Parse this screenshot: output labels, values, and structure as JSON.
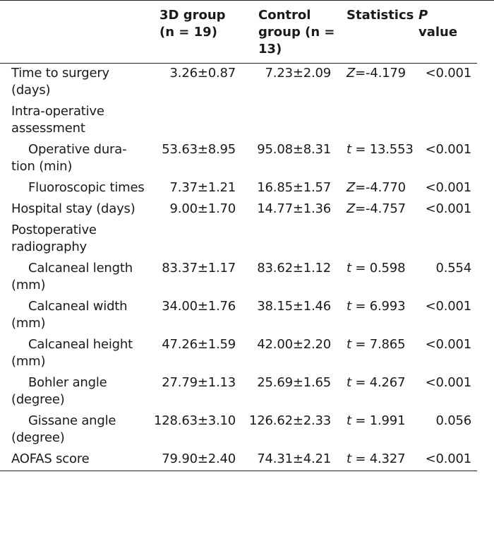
{
  "header": {
    "col0": "",
    "col1": "3D group (n = 19)",
    "col2": "Control group (n = 13)",
    "col3": "Statistics",
    "col4_italic": "P",
    "col4_rest": "value"
  },
  "rows": [
    {
      "label": "Time to surgery (days)",
      "indent": false,
      "g3d": "3.26±0.87",
      "ctrl": "7.23±2.09",
      "stat_sym": "Z",
      "stat_val": "=-4.179",
      "p": "<0.001"
    },
    {
      "label": "Intra-operative assessment",
      "indent": false,
      "g3d": "",
      "ctrl": "",
      "stat_sym": "",
      "stat_val": "",
      "p": ""
    },
    {
      "label": "Operative dura-tion (min)",
      "indent": true,
      "g3d": "53.63±8.95",
      "ctrl": "95.08±8.31",
      "stat_sym": "t",
      "stat_val": " = 13.553",
      "p": "<0.001"
    },
    {
      "label": "Fluoroscopic times",
      "indent": true,
      "g3d": "7.37±1.21",
      "ctrl": "16.85±1.57",
      "stat_sym": "Z",
      "stat_val": "=-4.770",
      "p": "<0.001"
    },
    {
      "label": "Hospital stay (days)",
      "indent": false,
      "g3d": "9.00±1.70",
      "ctrl": "14.77±1.36",
      "stat_sym": "Z",
      "stat_val": "=-4.757",
      "p": "<0.001"
    },
    {
      "label": "Postoperative radiography",
      "indent": false,
      "g3d": "",
      "ctrl": "",
      "stat_sym": "",
      "stat_val": "",
      "p": ""
    },
    {
      "label": "Calcaneal length (mm)",
      "indent": true,
      "g3d": "83.37±1.17",
      "ctrl": "83.62±1.12",
      "stat_sym": "t",
      "stat_val": " = 0.598",
      "p": "0.554"
    },
    {
      "label": "Calcaneal width (mm)",
      "indent": true,
      "g3d": "34.00±1.76",
      "ctrl": "38.15±1.46",
      "stat_sym": "t",
      "stat_val": " = 6.993",
      "p": "<0.001"
    },
    {
      "label": "Calcaneal height (mm)",
      "indent": true,
      "g3d": "47.26±1.59",
      "ctrl": "42.00±2.20",
      "stat_sym": "t",
      "stat_val": " = 7.865",
      "p": "<0.001"
    },
    {
      "label": "Bohler angle (degree)",
      "indent": true,
      "g3d": "27.79±1.13",
      "ctrl": "25.69±1.65",
      "stat_sym": "t",
      "stat_val": " = 4.267",
      "p": "<0.001"
    },
    {
      "label": "Gissane angle (degree)",
      "indent": true,
      "g3d": "128.63±3.10",
      "ctrl": "126.62±2.33",
      "stat_sym": "t",
      "stat_val": " = 1.991",
      "p": "0.056"
    },
    {
      "label": "AOFAS score",
      "indent": false,
      "g3d": "79.90±2.40",
      "ctrl": "74.31±4.21",
      "stat_sym": "t",
      "stat_val": " = 4.327",
      "p": "<0.001"
    }
  ]
}
